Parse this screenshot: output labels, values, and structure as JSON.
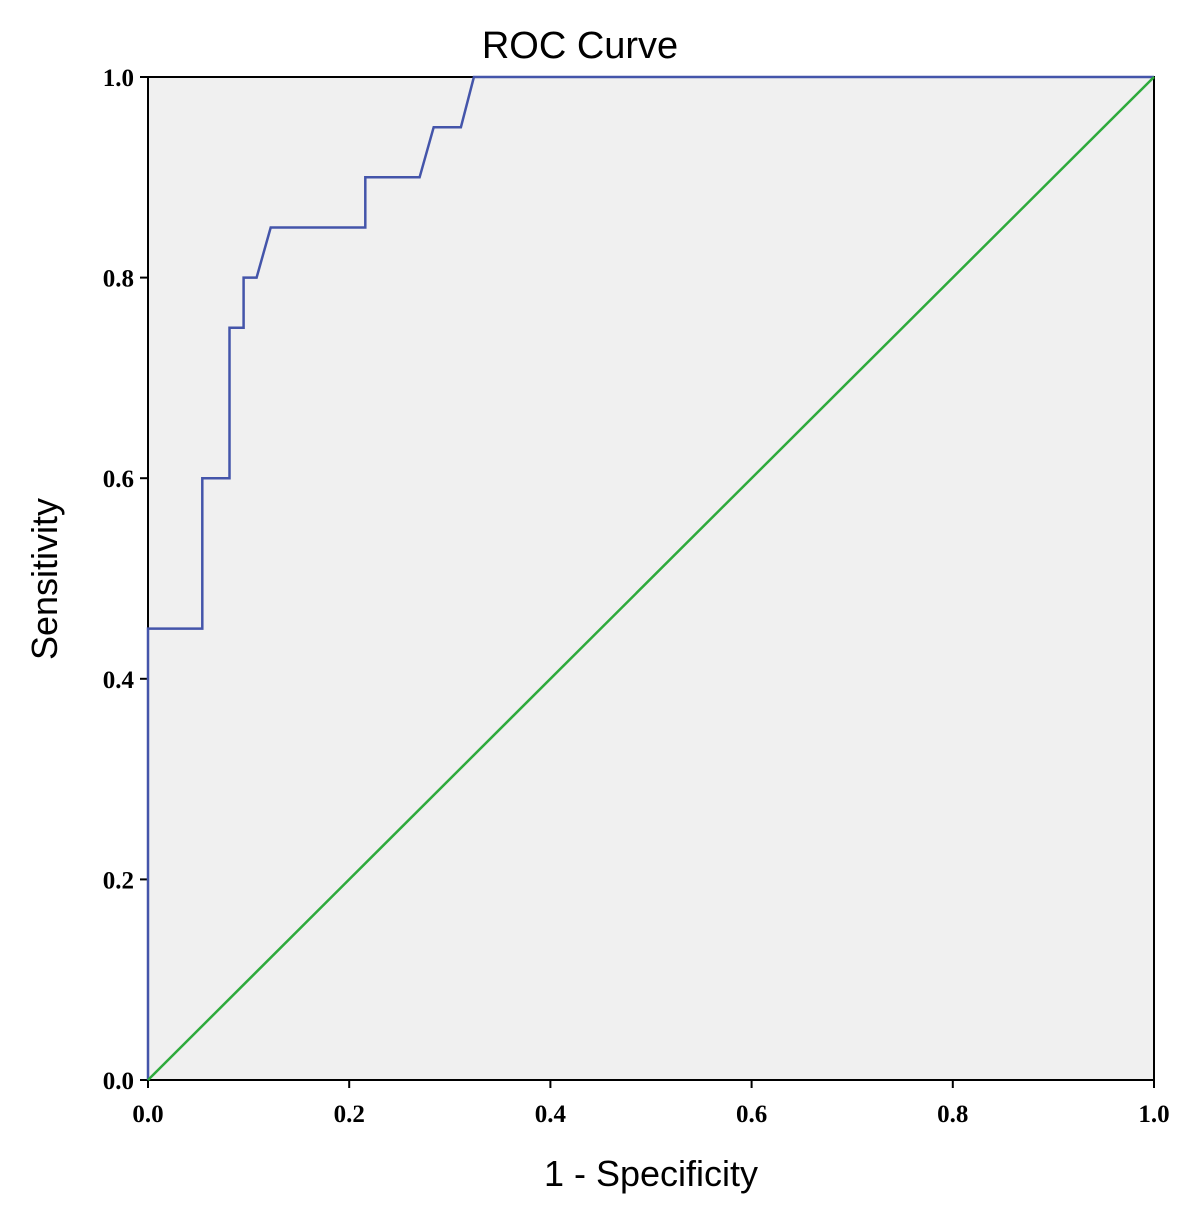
{
  "chart_data": {
    "type": "line",
    "title": "ROC Curve",
    "xlabel": "1 - Specificity",
    "ylabel": "Sensitivity",
    "xlim": [
      0.0,
      1.0
    ],
    "ylim": [
      0.0,
      1.0
    ],
    "xticks": [
      "0.0",
      "0.2",
      "0.4",
      "0.6",
      "0.8",
      "1.0"
    ],
    "yticks": [
      "0.0",
      "0.2",
      "0.4",
      "0.6",
      "0.8",
      "1.0"
    ],
    "grid": false,
    "plot_background": "#f0f0f0",
    "series": [
      {
        "color": "#4455aa",
        "x": [
          0.0,
          0.0,
          0.054,
          0.054,
          0.081,
          0.081,
          0.095,
          0.095,
          0.108,
          0.122,
          0.216,
          0.216,
          0.27,
          0.284,
          0.311,
          0.324,
          1.0
        ],
        "y": [
          0.0,
          0.45,
          0.45,
          0.6,
          0.6,
          0.75,
          0.75,
          0.8,
          0.8,
          0.85,
          0.85,
          0.9,
          0.9,
          0.95,
          0.95,
          1.0,
          1.0
        ]
      },
      {
        "color": "#2eaa3c",
        "x": [
          0.0,
          1.0
        ],
        "y": [
          0.0,
          1.0
        ]
      }
    ]
  }
}
